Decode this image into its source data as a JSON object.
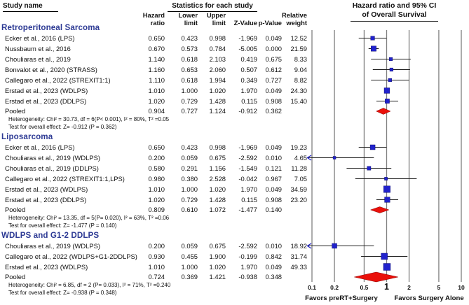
{
  "header": {
    "study_name_label": "Study name",
    "stats_label": "Statistics for each study",
    "columns": [
      "",
      "Hazard\nratio",
      "Lower\nlimit",
      "Upper\nlimit",
      "Z-Value",
      "p-Value",
      "Relative\nweight"
    ]
  },
  "plot": {
    "title_line1": "Hazard ratio and 95% CI",
    "title_line2": "of Overall Survival",
    "tick_labels": [
      "0.1",
      "0.2",
      "0.5",
      "1",
      "2",
      "5",
      "10"
    ],
    "favors_left": "Favors preRT+Surgery",
    "favors_right": "Favors Surgery Alone",
    "colors": {
      "square": "#2122cc",
      "diamond": "#ea100a",
      "grid": "#7f7f7f",
      "ci_line": "#1c1c1c",
      "heading_blue": "#2d3a94"
    }
  },
  "chart_data": {
    "type": "forest",
    "x_scale": "log",
    "x_ticks": [
      0.1,
      0.2,
      0.5,
      1,
      2,
      5,
      10
    ],
    "xlim": [
      0.1,
      10
    ],
    "groups": [
      {
        "label": "Retroperitoneal Sarcoma",
        "studies": [
          {
            "name": "Ecker et al., 2016 (LPS)",
            "hr": 0.65,
            "lower": 0.423,
            "upper": 0.998,
            "z": -1.969,
            "p": 0.049,
            "weight": 12.52
          },
          {
            "name": "Nussbaum et al., 2016",
            "hr": 0.67,
            "lower": 0.573,
            "upper": 0.784,
            "z": -5.005,
            "p": 0.0,
            "weight": 21.59
          },
          {
            "name": "Chouliaras et al., 2019",
            "hr": 1.14,
            "lower": 0.618,
            "upper": 2.103,
            "z": 0.419,
            "p": 0.675,
            "weight": 8.33
          },
          {
            "name": "Bonvalot et al., 2020 (STRASS)",
            "hr": 1.16,
            "lower": 0.653,
            "upper": 2.06,
            "z": 0.507,
            "p": 0.612,
            "weight": 9.04
          },
          {
            "name": "Callegaro et al., 2022 (STREXIT1:1)",
            "hr": 1.11,
            "lower": 0.618,
            "upper": 1.994,
            "z": 0.349,
            "p": 0.727,
            "weight": 8.82
          },
          {
            "name": "Erstad et al., 2023 (WDLPS)",
            "hr": 1.01,
            "lower": 1.0,
            "upper": 1.02,
            "z": 1.97,
            "p": 0.049,
            "weight": 24.3
          },
          {
            "name": "Erstad et al., 2023 (DDLPS)",
            "hr": 1.02,
            "lower": 0.729,
            "upper": 1.428,
            "z": 0.115,
            "p": 0.908,
            "weight": 15.4
          }
        ],
        "pooled": {
          "name": "Pooled",
          "hr": 0.904,
          "lower": 0.727,
          "upper": 1.124,
          "z": -0.912,
          "p": 0.362
        },
        "heterogeneity": "Heterogeneity: Chi² = 30.73, df = 6(P< 0.001), I² = 80%, T² =0.05",
        "overall_test": "Test for overall effect: Z= -0.912 (P = 0.362)"
      },
      {
        "label": "Liposarcoma",
        "studies": [
          {
            "name": "Ecker et al., 2016 (LPS)",
            "hr": 0.65,
            "lower": 0.423,
            "upper": 0.998,
            "z": -1.969,
            "p": 0.049,
            "weight": 19.23
          },
          {
            "name": "Chouliaras et al., 2019 (WDLPS)",
            "hr": 0.2,
            "lower": 0.059,
            "upper": 0.675,
            "z": -2.592,
            "p": 0.01,
            "weight": 4.65
          },
          {
            "name": "Chouliaras et al., 2019 (DDLPS)",
            "hr": 0.58,
            "lower": 0.291,
            "upper": 1.156,
            "z": -1.549,
            "p": 0.121,
            "weight": 11.28
          },
          {
            "name": "Callegaro et al., 2022 (STREXIT1:1,LPS)",
            "hr": 0.98,
            "lower": 0.38,
            "upper": 2.528,
            "z": -0.042,
            "p": 0.967,
            "weight": 7.05
          },
          {
            "name": "Erstad et al., 2023 (WDLPS)",
            "hr": 1.01,
            "lower": 1.0,
            "upper": 1.02,
            "z": 1.97,
            "p": 0.049,
            "weight": 34.59
          },
          {
            "name": "Erstad et al., 2023 (DDLPS)",
            "hr": 1.02,
            "lower": 0.729,
            "upper": 1.428,
            "z": 0.115,
            "p": 0.908,
            "weight": 23.2
          }
        ],
        "pooled": {
          "name": "Pooled",
          "hr": 0.809,
          "lower": 0.61,
          "upper": 1.072,
          "z": -1.477,
          "p": 0.14
        },
        "heterogeneity": "Heterogeneity: Chi² = 13.35, df = 5(P= 0.020), I² = 63%, T² =0.06",
        "overall_test": "Test for overall effect: Z= -1.477 (P = 0.140)"
      },
      {
        "label": "WDLPS and G1-2 DDLPS",
        "studies": [
          {
            "name": "Chouliaras et al., 2019 (WDLPS)",
            "hr": 0.2,
            "lower": 0.059,
            "upper": 0.675,
            "z": -2.592,
            "p": 0.01,
            "weight": 18.92
          },
          {
            "name": "Callegaro et al., 2022 (WDLPS+G1-2DDLPS)",
            "hr": 0.93,
            "lower": 0.455,
            "upper": 1.9,
            "z": -0.199,
            "p": 0.842,
            "weight": 31.74
          },
          {
            "name": "Erstad et al., 2023 (WDLPS)",
            "hr": 1.01,
            "lower": 1.0,
            "upper": 1.02,
            "z": 1.97,
            "p": 0.049,
            "weight": 49.33
          }
        ],
        "pooled": {
          "name": "Pooled",
          "hr": 0.724,
          "lower": 0.369,
          "upper": 1.421,
          "z": -0.938,
          "p": 0.348
        },
        "heterogeneity": "Heterogeneity: Chi² = 6.85, df = 2 (P= 0.033), I² = 71%, T² =0.240",
        "overall_test": "Test for overall effect: Z= -0.938 (P = 0.348)"
      }
    ]
  }
}
